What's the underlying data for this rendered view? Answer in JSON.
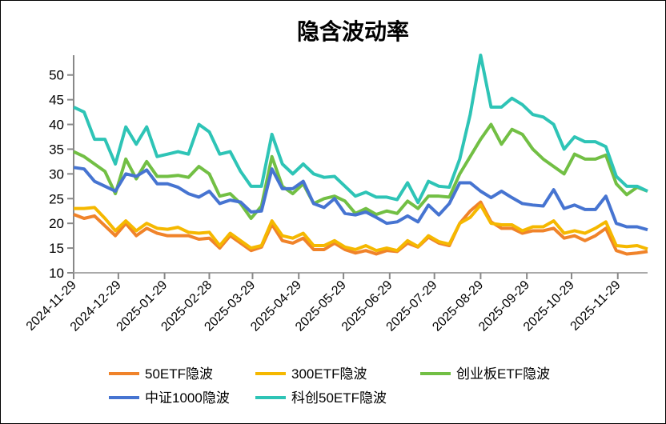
{
  "chart_data": {
    "type": "line",
    "title": "隐含波动率",
    "xlabel": "",
    "ylabel": "",
    "ylim": [
      10,
      54
    ],
    "yticks": [
      10,
      15,
      20,
      25,
      30,
      35,
      40,
      45,
      50
    ],
    "x_start": "2024-11-29",
    "x_step_days": 7,
    "x_end": "2025-12-19",
    "xtick_labels": [
      "2024-11-29",
      "2024-12-29",
      "2025-01-29",
      "2025-02-28",
      "2025-03-29",
      "2025-04-29",
      "2025-05-29",
      "2025-06-29",
      "2025-07-29",
      "2025-08-29",
      "2025-09-29",
      "2025-10-29",
      "2025-11-29"
    ],
    "grid": false,
    "legend_placement": "bottom",
    "series": [
      {
        "name": "50ETF隐波",
        "color": "#F0832A",
        "values": [
          21.8,
          21,
          21.5,
          19.5,
          17.5,
          20,
          17.5,
          19,
          18,
          17.5,
          17.5,
          17.5,
          16.8,
          17,
          15,
          17.5,
          16,
          14.5,
          15.2,
          19.8,
          16.5,
          16,
          17,
          14.7,
          14.7,
          16,
          14.7,
          14,
          14.5,
          13.8,
          14.5,
          14.3,
          16,
          15.2,
          17.2,
          16,
          15.5,
          20,
          22.5,
          24.3,
          20.3,
          19,
          19,
          18,
          18.5,
          18.5,
          19,
          17,
          17.5,
          16.5,
          17.5,
          19,
          14.5,
          13.8,
          14,
          14.3
        ]
      },
      {
        "name": "300ETF隐波",
        "color": "#F5B800",
        "values": [
          23,
          23,
          23.2,
          21,
          18.5,
          20.5,
          18.5,
          20,
          19,
          18.8,
          19.2,
          18.2,
          18,
          18.2,
          15.5,
          18,
          16.5,
          15,
          15.5,
          20.5,
          17.5,
          17,
          18,
          15.5,
          15.5,
          16.5,
          15.2,
          14.7,
          15.5,
          14.5,
          15,
          14.5,
          16.5,
          15.3,
          17.5,
          16.3,
          15.8,
          20,
          21.2,
          23.7,
          20,
          19.7,
          19.7,
          18.5,
          19.3,
          19.3,
          20.5,
          18,
          18.5,
          18,
          19,
          20.3,
          15.5,
          15.3,
          15.5,
          14.8
        ]
      },
      {
        "name": "创业板ETF隐波",
        "color": "#72BF44",
        "values": [
          34.5,
          33.5,
          32,
          30.5,
          26,
          33,
          29,
          32.5,
          29.5,
          29.5,
          29.7,
          29.3,
          31.5,
          30,
          25.5,
          26,
          24,
          21,
          23.5,
          33.5,
          27.5,
          26,
          28,
          24,
          25,
          25.5,
          24.5,
          22,
          23,
          21.8,
          22.5,
          22,
          24.5,
          23,
          25.5,
          25.5,
          25.3,
          30,
          33.5,
          37,
          40,
          36,
          39,
          38,
          35,
          33,
          31.5,
          30,
          34,
          33,
          33,
          33.8,
          28,
          25.8,
          27.3,
          26.5
        ]
      },
      {
        "name": "中证1000隐波",
        "color": "#4674D1",
        "values": [
          31.3,
          31,
          28.5,
          27.5,
          26.5,
          30,
          29.5,
          30.8,
          28,
          28,
          27.3,
          26,
          25.3,
          26.5,
          24,
          24.7,
          24.3,
          22.3,
          22.5,
          31,
          27,
          27,
          28.5,
          24,
          23.2,
          25,
          22,
          21.7,
          22.3,
          21.2,
          20,
          20.3,
          21.5,
          20.3,
          23.7,
          21.7,
          24,
          28.2,
          28.2,
          26.5,
          25.2,
          26.5,
          25.2,
          24,
          23.7,
          23.5,
          26.8,
          23,
          23.7,
          22.8,
          22.8,
          25.5,
          20,
          19.3,
          19.3,
          18.7
        ]
      },
      {
        "name": "科创50ETF隐波",
        "color": "#2EC4B6",
        "values": [
          43.5,
          42.5,
          37,
          37,
          32,
          39.5,
          36,
          39.5,
          33.5,
          34,
          34.5,
          34,
          40,
          38.5,
          34,
          34.5,
          30.5,
          27.5,
          27.5,
          38,
          32,
          30,
          32,
          30,
          29.3,
          29.5,
          27.5,
          25.5,
          26.3,
          25.3,
          25.3,
          24.8,
          28.2,
          24.2,
          28.5,
          27.5,
          27.3,
          33,
          42,
          54,
          43.5,
          43.5,
          45.3,
          44,
          42,
          41.5,
          40,
          35,
          37.5,
          36.5,
          36.5,
          35.5,
          29.5,
          27.5,
          27.5,
          26.5
        ]
      }
    ]
  }
}
